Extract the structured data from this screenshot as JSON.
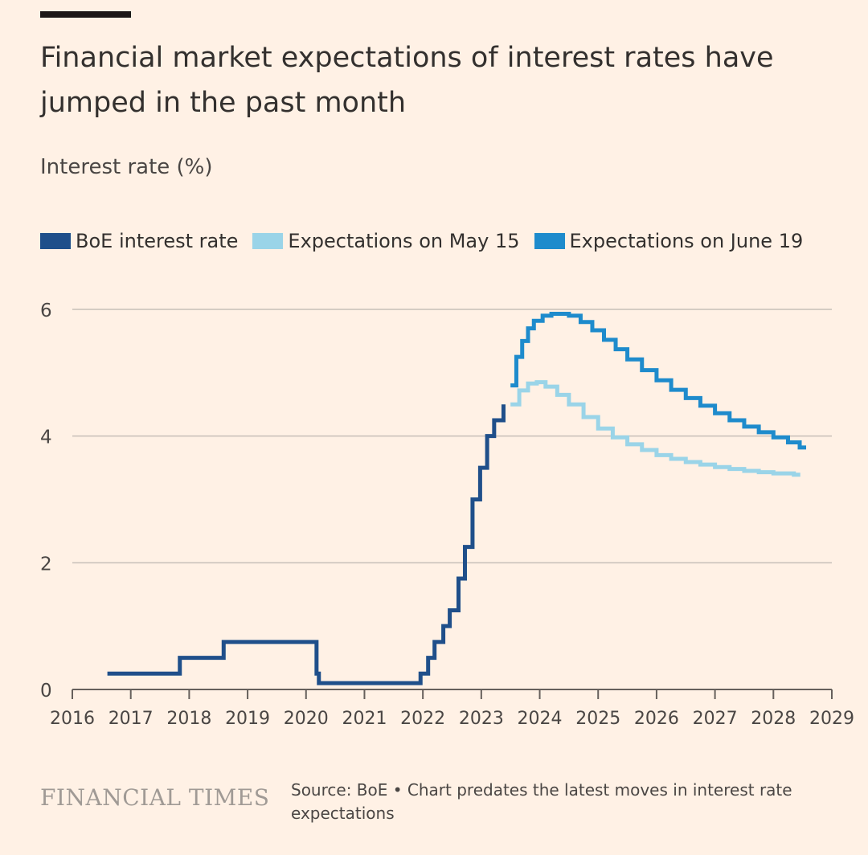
{
  "header": {
    "title": "Financial market expectations of interest rates have jumped in the past month",
    "subtitle": "Interest rate (%)"
  },
  "footer": {
    "logo": "FINANCIAL TIMES",
    "source": "Source: BoE • Chart predates the latest moves in interest rate expectations"
  },
  "chart_data": {
    "type": "line",
    "ylabel": "Interest rate (%)",
    "xlim": [
      2016,
      2029
    ],
    "ylim": [
      0,
      6
    ],
    "yticks": [
      0,
      2,
      4,
      6
    ],
    "xticks": [
      2016,
      2017,
      2018,
      2019,
      2020,
      2021,
      2022,
      2023,
      2024,
      2025,
      2026,
      2027,
      2028,
      2029
    ],
    "grid": true,
    "legend_position": "top",
    "series": [
      {
        "name": "BoE interest rate",
        "color": "#1f4f8a",
        "style": "step",
        "x": [
          2016.6,
          2017.84,
          2018.59,
          2020.18,
          2020.22,
          2021.96,
          2022.09,
          2022.2,
          2022.35,
          2022.46,
          2022.61,
          2022.72,
          2022.85,
          2022.98,
          2023.1,
          2023.22,
          2023.38
        ],
        "y": [
          0.25,
          0.5,
          0.75,
          0.25,
          0.1,
          0.25,
          0.5,
          0.75,
          1.0,
          1.25,
          1.75,
          2.25,
          3.0,
          3.5,
          4.0,
          4.25,
          4.5
        ]
      },
      {
        "name": "Expectations on May 15",
        "color": "#9ad4e8",
        "style": "step",
        "x": [
          2023.5,
          2023.65,
          2023.8,
          2023.95,
          2024.1,
          2024.3,
          2024.5,
          2024.75,
          2025.0,
          2025.25,
          2025.5,
          2025.75,
          2026.0,
          2026.25,
          2026.5,
          2026.75,
          2027.0,
          2027.25,
          2027.5,
          2027.75,
          2028.0,
          2028.35
        ],
        "y": [
          4.5,
          4.72,
          4.83,
          4.85,
          4.78,
          4.65,
          4.5,
          4.3,
          4.12,
          3.98,
          3.87,
          3.78,
          3.7,
          3.64,
          3.59,
          3.55,
          3.51,
          3.48,
          3.45,
          3.43,
          3.41,
          3.39
        ]
      },
      {
        "name": "Expectations on June 19",
        "color": "#1e8bcc",
        "style": "step",
        "x": [
          2023.5,
          2023.6,
          2023.7,
          2023.8,
          2023.9,
          2024.05,
          2024.2,
          2024.35,
          2024.5,
          2024.7,
          2024.9,
          2025.1,
          2025.3,
          2025.5,
          2025.75,
          2026.0,
          2026.25,
          2026.5,
          2026.75,
          2027.0,
          2027.25,
          2027.5,
          2027.75,
          2028.0,
          2028.25,
          2028.45
        ],
        "y": [
          4.8,
          5.25,
          5.5,
          5.7,
          5.82,
          5.9,
          5.93,
          5.93,
          5.9,
          5.8,
          5.67,
          5.52,
          5.37,
          5.21,
          5.04,
          4.88,
          4.73,
          4.6,
          4.48,
          4.36,
          4.25,
          4.15,
          4.06,
          3.98,
          3.9,
          3.82
        ]
      }
    ]
  }
}
